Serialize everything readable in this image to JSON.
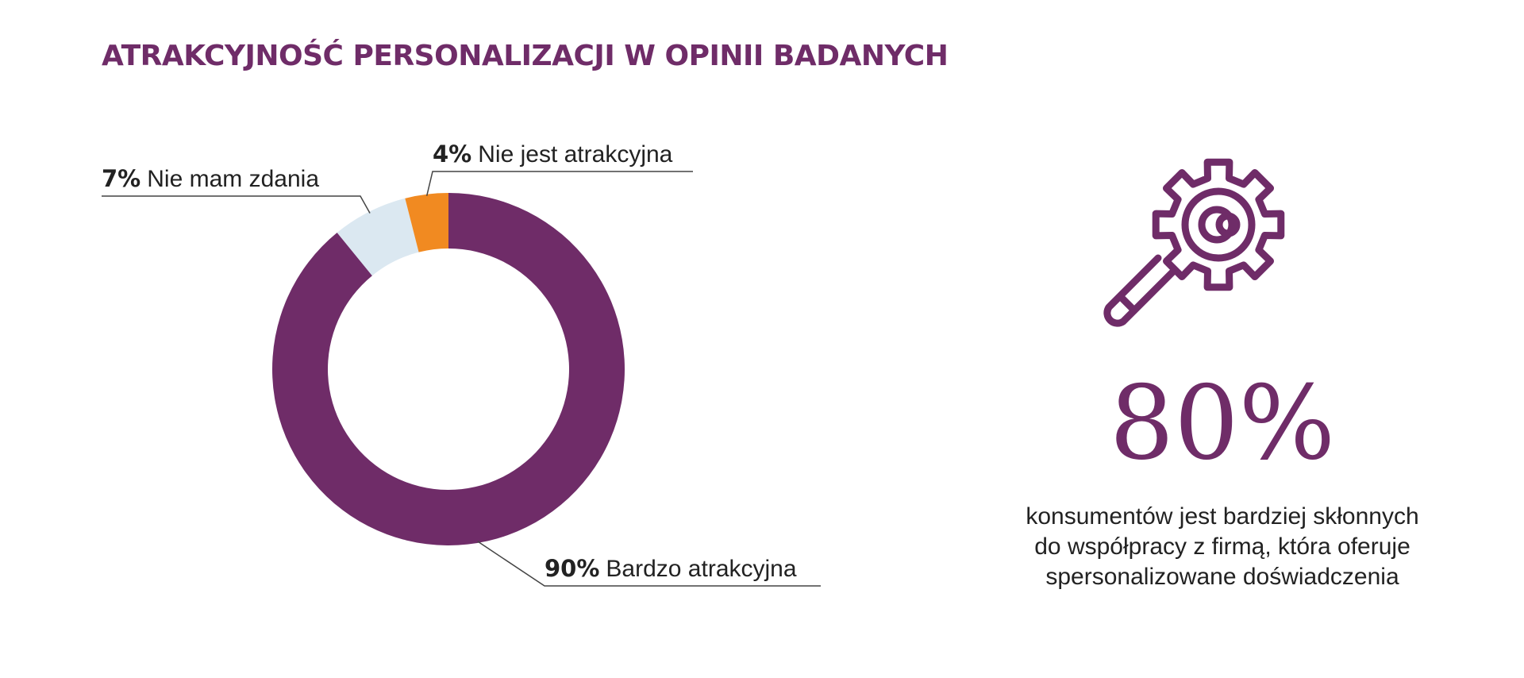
{
  "title": "ATRAKCYJNOŚĆ PERSONALIZACJI W OPINII BADANYCH",
  "colors": {
    "brand": "#6f2c68",
    "bardzo_atrakcyjna": "#6f2c68",
    "nie_mam_zdania": "#dbe8f1",
    "nie_jest_atrakcyjna": "#f18a21",
    "text": "#222222"
  },
  "chart_data": {
    "type": "pie",
    "variant": "donut",
    "categories": [
      "Bardzo atrakcyjna",
      "Nie mam zdania",
      "Nie jest atrakcyjna"
    ],
    "values": [
      90,
      7,
      4
    ],
    "value_labels": [
      "90%",
      "7%",
      "4%"
    ],
    "colors": [
      "#6f2c68",
      "#dbe8f1",
      "#f18a21"
    ],
    "title": "",
    "legend": "none"
  },
  "stat": {
    "icon": "gear-magnifier-icon",
    "value": "80%",
    "description_lines": [
      "konsumentów jest bardziej skłonnych",
      "do współpracy z firmą, która oferuje",
      "spersonalizowane doświadczenia"
    ]
  }
}
